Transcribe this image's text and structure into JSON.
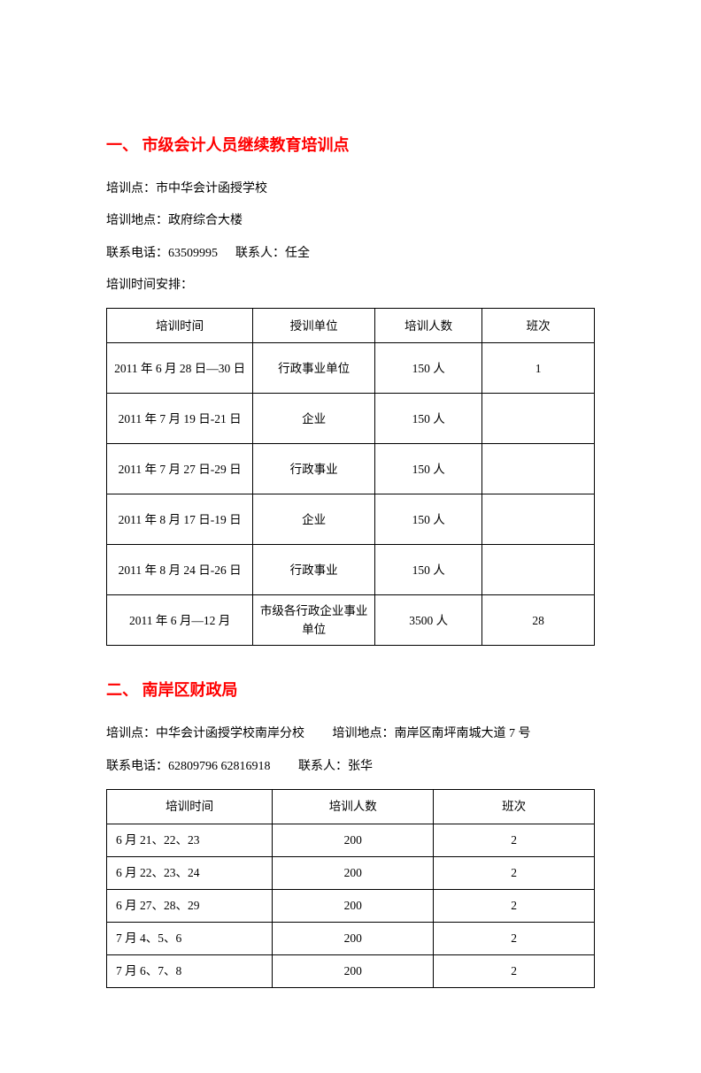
{
  "section1": {
    "heading": "一、 市级会计人员继续教育培训点",
    "lines": {
      "l1": "培训点：市中华会计函授学校",
      "l2": "培训地点：政府综合大楼",
      "l3a": "联系电话：63509995",
      "l3b": "联系人：任全",
      "l4": "培训时间安排："
    },
    "table": {
      "headers": [
        "培训时间",
        "授训单位",
        "培训人数",
        "班次"
      ],
      "rows": [
        [
          "2011 年 6 月 28 日—30 日",
          "行政事业单位",
          "150 人",
          "1"
        ],
        [
          "2011 年 7 月 19 日-21 日",
          "企业",
          "150 人",
          ""
        ],
        [
          "2011 年 7 月 27 日-29 日",
          "行政事业",
          "150 人",
          ""
        ],
        [
          "2011 年 8 月 17 日-19 日",
          "企业",
          "150 人",
          ""
        ],
        [
          "2011 年 8 月 24 日-26 日",
          "行政事业",
          "150 人",
          ""
        ],
        [
          "2011 年 6 月—12 月",
          "市级各行政企业事业单位",
          "3500 人",
          "28"
        ]
      ]
    }
  },
  "section2": {
    "heading": "二、 南岸区财政局",
    "lines": {
      "l1a": "培训点：中华会计函授学校南岸分校",
      "l1b": "培训地点：南岸区南坪南城大道 7 号",
      "l2a": "联系电话：62809796 62816918",
      "l2b": "联系人：张华"
    },
    "table": {
      "headers": [
        "培训时间",
        "培训人数",
        "班次"
      ],
      "rows": [
        [
          "6 月 21、22、23",
          "200",
          "2"
        ],
        [
          "6 月 22、23、24",
          "200",
          "2"
        ],
        [
          "6 月 27、28、29",
          "200",
          "2"
        ],
        [
          "7 月 4、5、6",
          "200",
          "2"
        ],
        [
          "7 月 6、7、8",
          "200",
          "2"
        ]
      ]
    }
  }
}
